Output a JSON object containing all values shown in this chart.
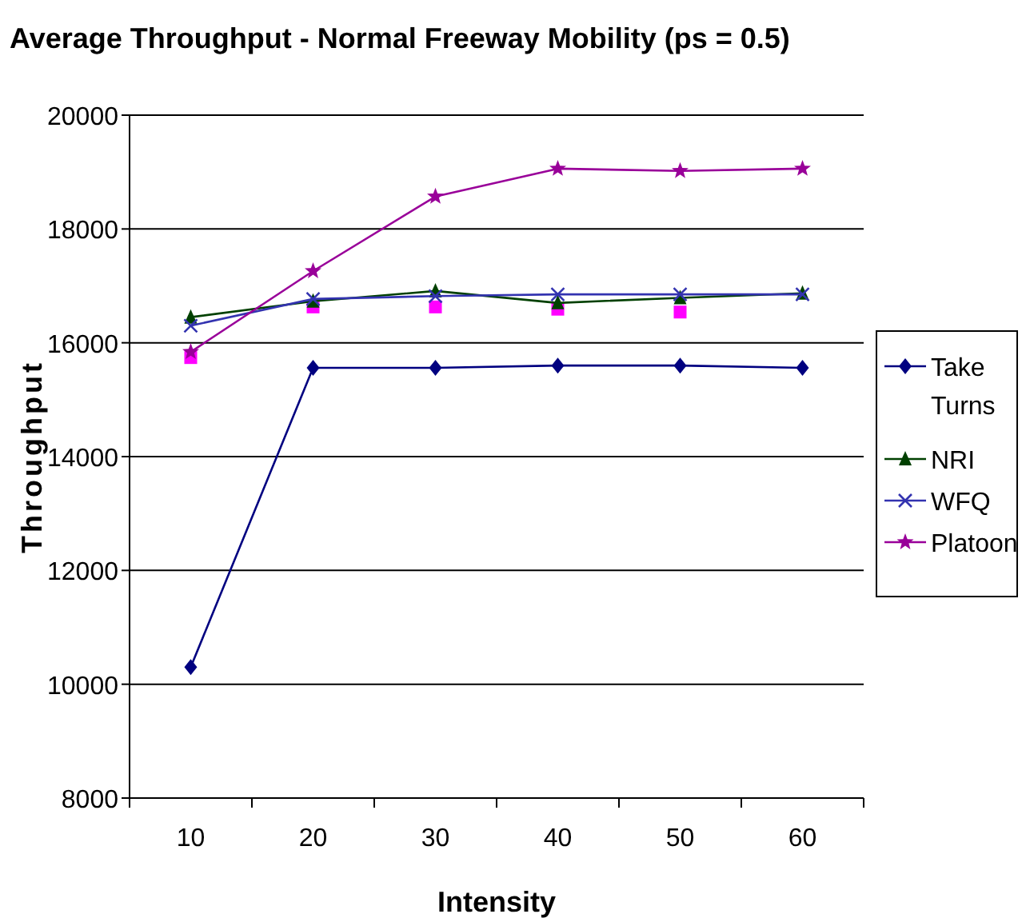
{
  "chart_data": {
    "type": "line",
    "title": "Average Throughput - Normal Freeway Mobility (ps = 0.5)",
    "xlabel": "Intensity",
    "ylabel": "Throughput",
    "categories": [
      "10",
      "20",
      "30",
      "40",
      "50",
      "60"
    ],
    "ylim": [
      8000,
      20000
    ],
    "yticks": [
      8000,
      10000,
      12000,
      14000,
      16000,
      18000,
      20000
    ],
    "grid": "y",
    "legend": "right",
    "series": [
      {
        "type": "scatter",
        "color": "#ff00ff",
        "marker": "square",
        "values": [
          15740,
          16630,
          16630,
          16590,
          16540,
          null
        ]
      },
      {
        "name": "Take Turns",
        "color": "#000080",
        "marker": "diamond",
        "values": [
          10300,
          15560,
          15560,
          15600,
          15600,
          15560
        ]
      },
      {
        "name": "NRI",
        "color": "#004000",
        "marker": "triangle",
        "values": [
          16450,
          16730,
          16910,
          16700,
          16790,
          16870
        ]
      },
      {
        "name": "WFQ",
        "color": "#3333b0",
        "marker": "cross",
        "values": [
          16300,
          16770,
          16820,
          16850,
          16850,
          16850
        ]
      },
      {
        "name": "Platoon",
        "color": "#990099",
        "marker": "star",
        "values": [
          15840,
          17260,
          18570,
          19060,
          19020,
          19060
        ]
      }
    ]
  }
}
